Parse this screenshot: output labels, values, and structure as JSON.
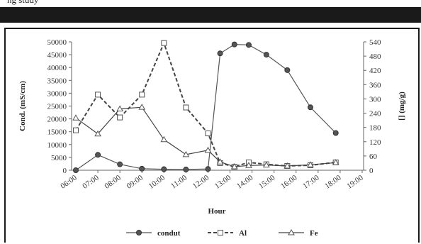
{
  "header_strip_text": "ng study",
  "chart_data": {
    "type": "line",
    "title": "",
    "xlabel": "Hour",
    "ylabel_left": "Cond. (mS/cm)",
    "ylabel_right": "[] (mg/g)",
    "categories": [
      "06:00",
      "07:00",
      "08:00",
      "09:00",
      "10:00",
      "11:00",
      "12:00",
      "13:00",
      "14:00",
      "15:00",
      "16:00",
      "17:00",
      "18:00",
      "19:00"
    ],
    "y_left": {
      "min": 0,
      "max": 50000,
      "ticks": [
        0,
        5000,
        10000,
        15000,
        20000,
        25000,
        30000,
        35000,
        40000,
        45000,
        50000
      ]
    },
    "y_right": {
      "min": 0,
      "max": 540,
      "ticks": [
        0,
        60,
        120,
        180,
        240,
        300,
        360,
        420,
        480,
        540
      ]
    },
    "grid": false,
    "legend_position": "bottom",
    "series": [
      {
        "name": "condut",
        "axis": "left",
        "color": "#555555",
        "marker": "circle",
        "line": "solid",
        "points": [
          [
            "06:00",
            0
          ],
          [
            7.0,
            6000
          ],
          [
            8.0,
            2300
          ],
          [
            9.0,
            600
          ],
          [
            10.0,
            400
          ],
          [
            11.0,
            300
          ],
          [
            12.0,
            500
          ],
          [
            12.55,
            45500
          ],
          [
            13.2,
            49000
          ],
          [
            13.85,
            48800
          ],
          [
            14.65,
            45000
          ],
          [
            15.6,
            39000
          ],
          [
            16.65,
            24500
          ],
          [
            17.8,
            14500
          ]
        ]
      },
      {
        "name": "Al",
        "axis": "right",
        "color": "#444444",
        "marker": "square",
        "line": "dashed",
        "points": [
          [
            "06:00",
            168
          ],
          [
            7.0,
            318
          ],
          [
            8.0,
            222
          ],
          [
            9.0,
            318
          ],
          [
            10.0,
            535
          ],
          [
            11.0,
            264
          ],
          [
            12.0,
            155
          ],
          [
            12.55,
            30
          ],
          [
            13.2,
            15
          ],
          [
            13.85,
            33
          ],
          [
            14.65,
            25
          ],
          [
            15.6,
            18
          ],
          [
            16.65,
            21
          ],
          [
            17.8,
            33
          ]
        ]
      },
      {
        "name": "Fe",
        "axis": "right",
        "color": "#444444",
        "marker": "triangle",
        "line": "solid",
        "points": [
          [
            "06:00",
            220
          ],
          [
            7.0,
            153
          ],
          [
            8.0,
            258
          ],
          [
            9.0,
            265
          ],
          [
            10.0,
            129
          ],
          [
            11.0,
            66
          ],
          [
            12.0,
            84
          ],
          [
            12.55,
            35
          ],
          [
            13.2,
            15
          ],
          [
            13.85,
            20
          ],
          [
            14.65,
            22
          ],
          [
            15.6,
            18
          ],
          [
            16.65,
            23
          ],
          [
            17.8,
            32
          ]
        ]
      }
    ]
  }
}
